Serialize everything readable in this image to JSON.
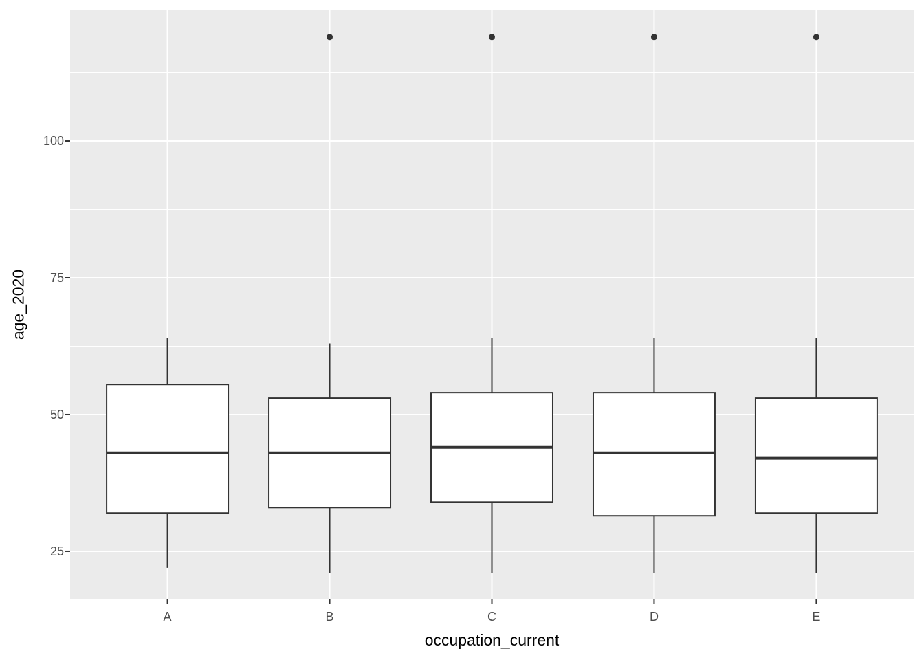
{
  "figure": {
    "background_color": "#FFFFFF",
    "panel_background_color": "#EBEBEB",
    "gridline_color": "#FFFFFF",
    "box_fill_color": "#FFFFFF",
    "box_stroke_color": "#333333",
    "tick_color": "#333333",
    "tick_label_color": "#4D4D4D",
    "axis_title_color": "#000000"
  },
  "axes": {
    "x_title": "occupation_current",
    "y_title": "age_2020",
    "y_tick_labels": [
      "25",
      "50",
      "75",
      "100"
    ],
    "y_tick_values": [
      25,
      50,
      75,
      100
    ],
    "x_tick_labels": [
      "A",
      "B",
      "C",
      "D",
      "E"
    ]
  },
  "chart_data": {
    "type": "boxplot",
    "title": "",
    "xlabel": "occupation_current",
    "ylabel": "age_2020",
    "categories": [
      "A",
      "B",
      "C",
      "D",
      "E"
    ],
    "ylim": [
      16.2,
      124
    ],
    "y_major_gridlines": [
      25,
      50,
      75,
      100
    ],
    "y_minor_gridlines": [
      37.5,
      62.5,
      87.5,
      112.5
    ],
    "grid": true,
    "legend": false,
    "series": [
      {
        "category": "A",
        "whisker_low": 22,
        "q1": 32,
        "median": 43,
        "q3": 55.5,
        "whisker_high": 64,
        "outliers": []
      },
      {
        "category": "B",
        "whisker_low": 21,
        "q1": 33,
        "median": 43,
        "q3": 53,
        "whisker_high": 63,
        "outliers": [
          119
        ]
      },
      {
        "category": "C",
        "whisker_low": 21,
        "q1": 34,
        "median": 44,
        "q3": 54,
        "whisker_high": 64,
        "outliers": [
          119
        ]
      },
      {
        "category": "D",
        "whisker_low": 21,
        "q1": 31.5,
        "median": 43,
        "q3": 54,
        "whisker_high": 64,
        "outliers": [
          119
        ]
      },
      {
        "category": "E",
        "whisker_low": 21,
        "q1": 32,
        "median": 42,
        "q3": 53,
        "whisker_high": 64,
        "outliers": [
          119
        ]
      }
    ]
  }
}
